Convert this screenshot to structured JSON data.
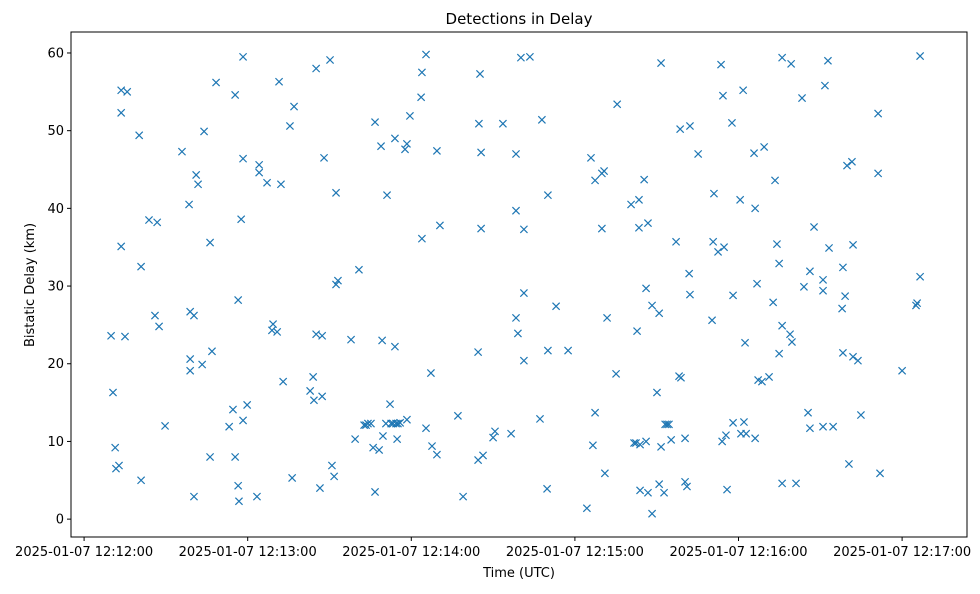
{
  "chart_data": {
    "type": "scatter",
    "title": "Detections in Delay",
    "xlabel": "Time (UTC)",
    "ylabel": "Bistatic Delay (km)",
    "x_units": "seconds after 2025-01-07 12:12:00 UTC",
    "xlim": [
      -4.8,
      323.8
    ],
    "ylim": [
      -2.3,
      62.7
    ],
    "grid": false,
    "marker": "x",
    "color": "#1f77b4",
    "x_ticks": [
      {
        "value": 0,
        "label": "2025-01-07 12:12:00"
      },
      {
        "value": 60,
        "label": "2025-01-07 12:13:00"
      },
      {
        "value": 120,
        "label": "2025-01-07 12:14:00"
      },
      {
        "value": 180,
        "label": "2025-01-07 12:15:00"
      },
      {
        "value": 240,
        "label": "2025-01-07 12:16:00"
      },
      {
        "value": 300,
        "label": "2025-01-07 12:17:00"
      }
    ],
    "y_ticks": [
      {
        "value": 0,
        "label": "0"
      },
      {
        "value": 10,
        "label": "10"
      },
      {
        "value": 20,
        "label": "20"
      },
      {
        "value": 30,
        "label": "30"
      },
      {
        "value": 40,
        "label": "40"
      },
      {
        "value": 50,
        "label": "50"
      },
      {
        "value": 60,
        "label": "60"
      }
    ],
    "points": [
      [
        9.9,
        23.6
      ],
      [
        10.6,
        16.3
      ],
      [
        11.4,
        9.2
      ],
      [
        11.7,
        6.5
      ],
      [
        12.8,
        6.9
      ],
      [
        13.6,
        55.2
      ],
      [
        13.6,
        52.3
      ],
      [
        13.6,
        35.1
      ],
      [
        15.0,
        23.5
      ],
      [
        15.8,
        55.0
      ],
      [
        20.2,
        49.4
      ],
      [
        20.9,
        32.5
      ],
      [
        20.9,
        5.0
      ],
      [
        23.8,
        38.5
      ],
      [
        26.0,
        26.2
      ],
      [
        26.8,
        38.2
      ],
      [
        27.5,
        24.8
      ],
      [
        29.7,
        12.0
      ],
      [
        35.9,
        47.3
      ],
      [
        38.5,
        40.5
      ],
      [
        38.9,
        26.7
      ],
      [
        38.9,
        20.6
      ],
      [
        38.9,
        19.1
      ],
      [
        40.3,
        26.2
      ],
      [
        40.3,
        2.9
      ],
      [
        41.1,
        44.3
      ],
      [
        41.8,
        43.1
      ],
      [
        43.3,
        19.9
      ],
      [
        44.0,
        49.9
      ],
      [
        46.2,
        35.6
      ],
      [
        46.2,
        8.0
      ],
      [
        46.9,
        21.6
      ],
      [
        48.4,
        56.2
      ],
      [
        53.2,
        11.9
      ],
      [
        54.6,
        14.1
      ],
      [
        55.4,
        54.6
      ],
      [
        55.4,
        8.0
      ],
      [
        56.5,
        28.2
      ],
      [
        56.5,
        4.3
      ],
      [
        56.8,
        2.3
      ],
      [
        57.6,
        38.6
      ],
      [
        58.3,
        59.5
      ],
      [
        58.3,
        46.4
      ],
      [
        58.3,
        12.7
      ],
      [
        59.8,
        14.7
      ],
      [
        63.4,
        2.9
      ],
      [
        64.2,
        45.6
      ],
      [
        64.2,
        44.6
      ],
      [
        67.1,
        43.3
      ],
      [
        68.9,
        24.3
      ],
      [
        69.3,
        25.1
      ],
      [
        70.8,
        24.1
      ],
      [
        71.5,
        56.3
      ],
      [
        72.2,
        43.1
      ],
      [
        73.0,
        17.7
      ],
      [
        75.5,
        50.6
      ],
      [
        76.3,
        5.3
      ],
      [
        77.0,
        53.1
      ],
      [
        82.9,
        16.5
      ],
      [
        84.0,
        18.3
      ],
      [
        84.3,
        15.3
      ],
      [
        85.1,
        58.0
      ],
      [
        85.1,
        23.8
      ],
      [
        86.5,
        4.0
      ],
      [
        87.3,
        23.6
      ],
      [
        87.3,
        15.8
      ],
      [
        88.0,
        46.5
      ],
      [
        90.2,
        59.1
      ],
      [
        90.9,
        6.9
      ],
      [
        91.7,
        5.5
      ],
      [
        92.4,
        42.0
      ],
      [
        92.4,
        30.2
      ],
      [
        93.1,
        30.7
      ],
      [
        97.9,
        23.1
      ],
      [
        99.4,
        10.3
      ],
      [
        100.8,
        32.1
      ],
      [
        102.7,
        12.1
      ],
      [
        103.4,
        12.1
      ],
      [
        104.1,
        12.3
      ],
      [
        105.2,
        12.3
      ],
      [
        106.0,
        9.2
      ],
      [
        106.7,
        51.1
      ],
      [
        106.7,
        3.5
      ],
      [
        108.2,
        8.9
      ],
      [
        108.9,
        48.0
      ],
      [
        109.3,
        23.0
      ],
      [
        109.6,
        10.7
      ],
      [
        110.7,
        12.3
      ],
      [
        111.1,
        41.7
      ],
      [
        112.2,
        14.8
      ],
      [
        112.6,
        12.3
      ],
      [
        113.3,
        12.3
      ],
      [
        114.0,
        49.0
      ],
      [
        114.0,
        22.2
      ],
      [
        114.4,
        12.3
      ],
      [
        114.8,
        10.3
      ],
      [
        115.1,
        12.3
      ],
      [
        115.9,
        12.4
      ],
      [
        117.7,
        47.6
      ],
      [
        118.4,
        48.3
      ],
      [
        118.4,
        12.8
      ],
      [
        119.5,
        51.9
      ],
      [
        123.6,
        54.3
      ],
      [
        123.9,
        57.5
      ],
      [
        123.9,
        36.1
      ],
      [
        125.4,
        59.8
      ],
      [
        125.4,
        11.7
      ],
      [
        127.2,
        18.8
      ],
      [
        127.6,
        9.4
      ],
      [
        129.4,
        47.4
      ],
      [
        129.4,
        8.3
      ],
      [
        130.5,
        37.8
      ],
      [
        137.1,
        13.3
      ],
      [
        139.0,
        2.9
      ],
      [
        144.5,
        7.6
      ],
      [
        144.5,
        21.5
      ],
      [
        144.8,
        50.9
      ],
      [
        145.2,
        57.3
      ],
      [
        145.6,
        47.2
      ],
      [
        145.6,
        37.4
      ],
      [
        146.3,
        8.2
      ],
      [
        150.0,
        10.5
      ],
      [
        150.7,
        11.3
      ],
      [
        153.6,
        50.9
      ],
      [
        156.6,
        11.0
      ],
      [
        158.4,
        47.0
      ],
      [
        158.4,
        39.7
      ],
      [
        158.4,
        25.9
      ],
      [
        159.1,
        23.9
      ],
      [
        160.2,
        59.4
      ],
      [
        161.3,
        29.1
      ],
      [
        161.3,
        37.3
      ],
      [
        161.3,
        20.4
      ],
      [
        163.5,
        59.5
      ],
      [
        167.2,
        12.9
      ],
      [
        167.9,
        51.4
      ],
      [
        169.8,
        3.9
      ],
      [
        170.1,
        41.7
      ],
      [
        170.1,
        21.7
      ],
      [
        173.1,
        27.4
      ],
      [
        177.5,
        21.7
      ],
      [
        184.4,
        1.4
      ],
      [
        185.9,
        46.5
      ],
      [
        186.6,
        9.5
      ],
      [
        187.4,
        43.6
      ],
      [
        187.4,
        13.7
      ],
      [
        189.9,
        37.4
      ],
      [
        189.9,
        44.5
      ],
      [
        190.7,
        44.8
      ],
      [
        191.0,
        5.9
      ],
      [
        191.8,
        25.9
      ],
      [
        195.1,
        18.7
      ],
      [
        195.5,
        53.4
      ],
      [
        200.6,
        40.5
      ],
      [
        201.7,
        9.8
      ],
      [
        202.4,
        9.8
      ],
      [
        202.8,
        24.2
      ],
      [
        203.5,
        41.1
      ],
      [
        203.5,
        37.5
      ],
      [
        203.9,
        3.7
      ],
      [
        203.9,
        9.6
      ],
      [
        205.4,
        43.7
      ],
      [
        206.1,
        29.7
      ],
      [
        206.1,
        10.0
      ],
      [
        206.8,
        38.1
      ],
      [
        206.8,
        3.4
      ],
      [
        208.3,
        27.5
      ],
      [
        208.3,
        0.7
      ],
      [
        210.1,
        16.3
      ],
      [
        210.9,
        26.5
      ],
      [
        210.9,
        4.5
      ],
      [
        211.6,
        58.7
      ],
      [
        211.6,
        9.3
      ],
      [
        212.7,
        3.4
      ],
      [
        213.1,
        12.2
      ],
      [
        213.8,
        12.2
      ],
      [
        214.5,
        12.2
      ],
      [
        215.3,
        10.2
      ],
      [
        217.1,
        35.7
      ],
      [
        218.2,
        18.4
      ],
      [
        218.6,
        50.2
      ],
      [
        218.9,
        18.2
      ],
      [
        220.4,
        10.4
      ],
      [
        220.4,
        4.8
      ],
      [
        221.1,
        4.2
      ],
      [
        221.9,
        31.6
      ],
      [
        222.2,
        28.9
      ],
      [
        222.2,
        50.6
      ],
      [
        225.2,
        47.0
      ],
      [
        230.3,
        25.6
      ],
      [
        230.7,
        35.7
      ],
      [
        231.0,
        41.9
      ],
      [
        232.5,
        34.4
      ],
      [
        233.6,
        58.5
      ],
      [
        234.0,
        10.0
      ],
      [
        234.3,
        54.5
      ],
      [
        234.7,
        35.0
      ],
      [
        235.4,
        10.8
      ],
      [
        235.8,
        3.8
      ],
      [
        237.6,
        51.0
      ],
      [
        238.0,
        28.8
      ],
      [
        238.0,
        12.4
      ],
      [
        240.6,
        41.1
      ],
      [
        240.9,
        11.0
      ],
      [
        241.7,
        55.2
      ],
      [
        242.0,
        12.5
      ],
      [
        242.4,
        22.7
      ],
      [
        242.8,
        11.0
      ],
      [
        245.7,
        47.1
      ],
      [
        246.1,
        40.0
      ],
      [
        246.1,
        10.4
      ],
      [
        246.8,
        30.3
      ],
      [
        247.2,
        17.9
      ],
      [
        248.6,
        17.7
      ],
      [
        249.4,
        47.9
      ],
      [
        251.2,
        18.3
      ],
      [
        252.7,
        27.9
      ],
      [
        253.4,
        43.6
      ],
      [
        254.1,
        35.4
      ],
      [
        254.9,
        21.3
      ],
      [
        254.9,
        32.9
      ],
      [
        256.0,
        59.4
      ],
      [
        256.0,
        24.9
      ],
      [
        256.0,
        4.6
      ],
      [
        258.9,
        23.8
      ],
      [
        259.3,
        58.6
      ],
      [
        259.6,
        22.8
      ],
      [
        261.1,
        4.6
      ],
      [
        263.3,
        54.2
      ],
      [
        264.0,
        29.9
      ],
      [
        265.5,
        13.7
      ],
      [
        266.2,
        31.9
      ],
      [
        266.2,
        11.7
      ],
      [
        267.7,
        37.6
      ],
      [
        271.0,
        29.4
      ],
      [
        271.0,
        30.8
      ],
      [
        271.0,
        11.9
      ],
      [
        271.7,
        55.8
      ],
      [
        272.8,
        59.0
      ],
      [
        273.2,
        34.9
      ],
      [
        274.7,
        11.9
      ],
      [
        278.0,
        27.1
      ],
      [
        278.3,
        21.4
      ],
      [
        278.3,
        32.4
      ],
      [
        279.1,
        28.7
      ],
      [
        279.8,
        45.5
      ],
      [
        280.5,
        7.1
      ],
      [
        281.6,
        46.0
      ],
      [
        282.0,
        35.3
      ],
      [
        282.0,
        20.9
      ],
      [
        283.8,
        20.4
      ],
      [
        284.9,
        13.4
      ],
      [
        291.2,
        52.2
      ],
      [
        291.2,
        44.5
      ],
      [
        291.9,
        5.9
      ],
      [
        300.0,
        19.1
      ],
      [
        305.1,
        27.5
      ],
      [
        305.5,
        27.8
      ],
      [
        306.6,
        31.2
      ],
      [
        306.6,
        59.6
      ]
    ]
  }
}
